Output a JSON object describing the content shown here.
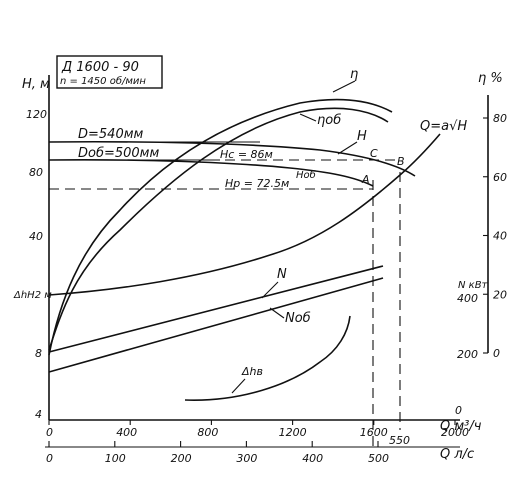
{
  "chart_data": {
    "type": "line",
    "info": {
      "model": "Д 1600 - 90",
      "speed": "n = 1450 об/мин"
    },
    "axes": {
      "x_bottom_m3h": {
        "label": "Q м³/ч",
        "ticks": [
          "0",
          "400",
          "800",
          "1200",
          "1600",
          "2000"
        ],
        "range": [
          0,
          2000
        ],
        "extra_label": "0"
      },
      "x_bottom_ls": {
        "label": "Q л/с",
        "ticks": [
          "0",
          "100",
          "200",
          "300",
          "400",
          "500"
        ],
        "extra_label": "550"
      },
      "y_left_head": {
        "label": "H, м",
        "ticks": [
          "4",
          "8",
          "40",
          "80",
          "120"
        ],
        "npsh_label": "ΔhН2 м"
      },
      "y_right_eff": {
        "label": "η %",
        "ticks": [
          "0",
          "20",
          "40",
          "60",
          "80"
        ],
        "range": [
          0,
          80
        ]
      },
      "y_right_power": {
        "label": "N кВт",
        "ticks": [
          "200",
          "400"
        ]
      }
    },
    "labels": {
      "D": "D=540мм",
      "D_ob": "Dоб=500мм",
      "H": "H",
      "H_ob": "Hоб",
      "eta": "η",
      "eta_ob": "ηоб",
      "N": "N",
      "N_ob": "Nоб",
      "dh": "Δhв",
      "system": "Q=a√H",
      "Hc": "Hc = 86м",
      "Hp": "Hp = 72.5м",
      "pt_A": "A",
      "pt_B": "B",
      "pt_C": "C"
    },
    "series": [
      {
        "name": "H",
        "x": [
          0,
          400,
          800,
          1200,
          1600,
          1720
        ],
        "y": [
          100,
          99,
          97,
          93,
          87,
          82
        ]
      },
      {
        "name": "Hоб",
        "x": [
          0,
          400,
          800,
          1200,
          1600
        ],
        "y": [
          86,
          84,
          81,
          77,
          72.5
        ]
      },
      {
        "name": "η",
        "x": [
          0,
          400,
          800,
          1200,
          1600,
          1720
        ],
        "y": [
          0,
          47,
          73,
          82,
          78,
          70
        ]
      },
      {
        "name": "ηоб",
        "x": [
          0,
          400,
          800,
          1200,
          1600,
          1720
        ],
        "y": [
          0,
          45,
          70,
          79,
          75,
          67
        ]
      },
      {
        "name": "N",
        "x": [
          0,
          1630
        ],
        "y": [
          260,
          460
        ]
      },
      {
        "name": "Nоб",
        "x": [
          0,
          1630
        ],
        "y": [
          230,
          420
        ]
      },
      {
        "name": "Q=a√H",
        "x": [
          0,
          400,
          800,
          1200,
          1600,
          1750
        ],
        "y": [
          28,
          33,
          41,
          53,
          69,
          78
        ]
      },
      {
        "name": "Δhв",
        "x": [
          800,
          1000,
          1200,
          1400,
          1600
        ],
        "y": [
          4.5,
          4.7,
          5.4,
          6.5,
          8.5
        ]
      }
    ]
  }
}
